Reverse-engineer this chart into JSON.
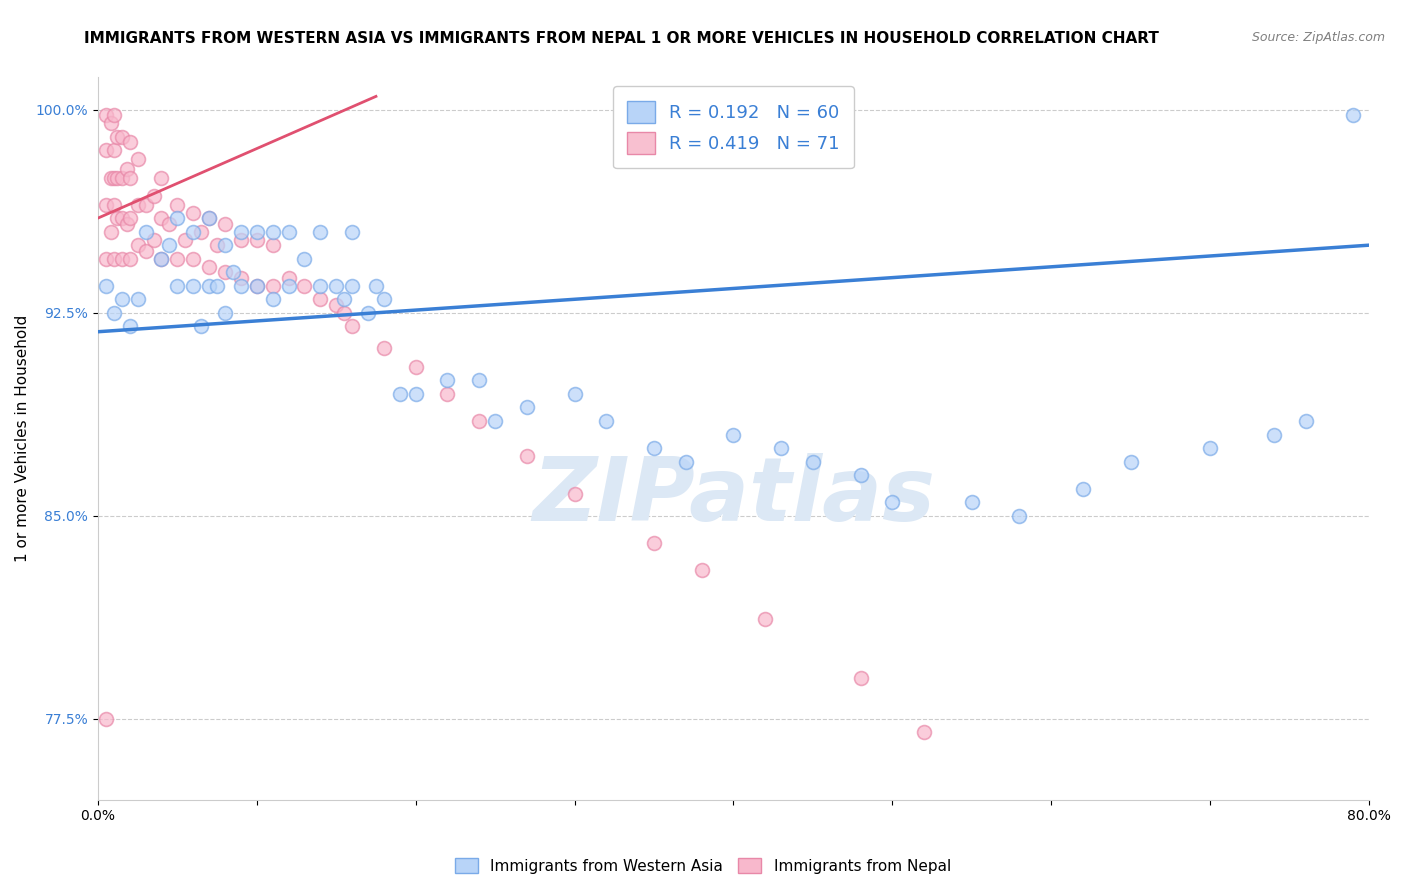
{
  "title": "IMMIGRANTS FROM WESTERN ASIA VS IMMIGRANTS FROM NEPAL 1 OR MORE VEHICLES IN HOUSEHOLD CORRELATION CHART",
  "source": "Source: ZipAtlas.com",
  "ylabel": "1 or more Vehicles in Household",
  "xlim": [
    0.0,
    0.8
  ],
  "ylim": [
    0.745,
    1.012
  ],
  "x_ticks": [
    0.0,
    0.1,
    0.2,
    0.3,
    0.4,
    0.5,
    0.6,
    0.7,
    0.8
  ],
  "x_tick_labels": [
    "0.0%",
    "",
    "",
    "",
    "",
    "",
    "",
    "",
    "80.0%"
  ],
  "y_ticks": [
    0.775,
    0.85,
    0.925,
    1.0
  ],
  "y_tick_labels": [
    "77.5%",
    "85.0%",
    "92.5%",
    "100.0%"
  ],
  "legend_blue_label": "R = 0.192   N = 60",
  "legend_pink_label": "R = 0.419   N = 71",
  "legend_blue_color": "#b8d4f8",
  "legend_pink_color": "#f8c0d0",
  "trendline_blue_color": "#3a7fd5",
  "trendline_pink_color": "#e05070",
  "watermark": "ZIPatlas",
  "watermark_color": "#dce8f5",
  "scatter_blue_color": "#b8d4f8",
  "scatter_pink_color": "#f8b8cc",
  "scatter_blue_edge": "#7aaae8",
  "scatter_pink_edge": "#e888a8",
  "blue_x": [
    0.005,
    0.01,
    0.015,
    0.02,
    0.025,
    0.03,
    0.04,
    0.045,
    0.05,
    0.05,
    0.06,
    0.06,
    0.065,
    0.07,
    0.07,
    0.075,
    0.08,
    0.08,
    0.085,
    0.09,
    0.09,
    0.1,
    0.1,
    0.11,
    0.11,
    0.12,
    0.12,
    0.13,
    0.14,
    0.14,
    0.15,
    0.155,
    0.16,
    0.16,
    0.17,
    0.175,
    0.18,
    0.19,
    0.2,
    0.22,
    0.24,
    0.25,
    0.27,
    0.3,
    0.32,
    0.35,
    0.37,
    0.4,
    0.43,
    0.45,
    0.48,
    0.5,
    0.55,
    0.58,
    0.62,
    0.65,
    0.7,
    0.74,
    0.76,
    0.79
  ],
  "blue_y": [
    0.935,
    0.925,
    0.93,
    0.92,
    0.93,
    0.955,
    0.945,
    0.95,
    0.935,
    0.96,
    0.935,
    0.955,
    0.92,
    0.935,
    0.96,
    0.935,
    0.925,
    0.95,
    0.94,
    0.935,
    0.955,
    0.935,
    0.955,
    0.93,
    0.955,
    0.935,
    0.955,
    0.945,
    0.935,
    0.955,
    0.935,
    0.93,
    0.935,
    0.955,
    0.925,
    0.935,
    0.93,
    0.895,
    0.895,
    0.9,
    0.9,
    0.885,
    0.89,
    0.895,
    0.885,
    0.875,
    0.87,
    0.88,
    0.875,
    0.87,
    0.865,
    0.855,
    0.855,
    0.85,
    0.86,
    0.87,
    0.875,
    0.88,
    0.885,
    0.998
  ],
  "pink_x": [
    0.005,
    0.005,
    0.005,
    0.005,
    0.008,
    0.008,
    0.008,
    0.01,
    0.01,
    0.01,
    0.01,
    0.01,
    0.012,
    0.012,
    0.012,
    0.015,
    0.015,
    0.015,
    0.015,
    0.018,
    0.018,
    0.02,
    0.02,
    0.02,
    0.02,
    0.025,
    0.025,
    0.025,
    0.03,
    0.03,
    0.035,
    0.035,
    0.04,
    0.04,
    0.04,
    0.045,
    0.05,
    0.05,
    0.055,
    0.06,
    0.06,
    0.065,
    0.07,
    0.07,
    0.075,
    0.08,
    0.08,
    0.09,
    0.09,
    0.1,
    0.1,
    0.11,
    0.11,
    0.12,
    0.13,
    0.14,
    0.15,
    0.155,
    0.16,
    0.18,
    0.2,
    0.22,
    0.24,
    0.27,
    0.3,
    0.35,
    0.38,
    0.42,
    0.48,
    0.52,
    0.005
  ],
  "pink_y": [
    0.945,
    0.965,
    0.985,
    0.998,
    0.955,
    0.975,
    0.995,
    0.945,
    0.965,
    0.975,
    0.985,
    0.998,
    0.96,
    0.975,
    0.99,
    0.945,
    0.96,
    0.975,
    0.99,
    0.958,
    0.978,
    0.945,
    0.96,
    0.975,
    0.988,
    0.95,
    0.965,
    0.982,
    0.948,
    0.965,
    0.952,
    0.968,
    0.945,
    0.96,
    0.975,
    0.958,
    0.945,
    0.965,
    0.952,
    0.945,
    0.962,
    0.955,
    0.942,
    0.96,
    0.95,
    0.94,
    0.958,
    0.938,
    0.952,
    0.935,
    0.952,
    0.935,
    0.95,
    0.938,
    0.935,
    0.93,
    0.928,
    0.925,
    0.92,
    0.912,
    0.905,
    0.895,
    0.885,
    0.872,
    0.858,
    0.84,
    0.83,
    0.812,
    0.79,
    0.77,
    0.775
  ],
  "blue_trend_x": [
    0.0,
    0.8
  ],
  "blue_trend_y": [
    0.918,
    0.95
  ],
  "pink_trend_x": [
    0.0,
    0.175
  ],
  "pink_trend_y": [
    0.96,
    1.005
  ],
  "bottom_legend": [
    "Immigrants from Western Asia",
    "Immigrants from Nepal"
  ],
  "grid_color": "#cccccc",
  "background_color": "#ffffff",
  "title_fontsize": 11,
  "axis_label_fontsize": 11,
  "tick_fontsize": 10,
  "scatter_size": 100
}
